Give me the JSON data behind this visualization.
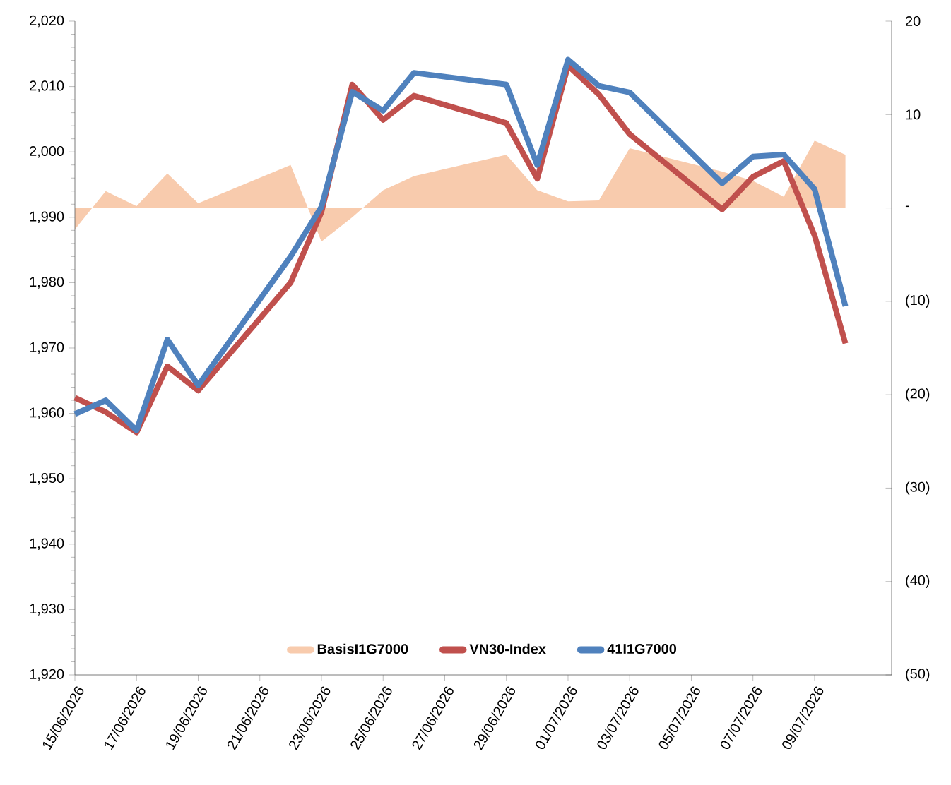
{
  "chart_data": {
    "type": "line",
    "x": [
      "2026-06-15",
      "2026-06-16",
      "2026-06-17",
      "2026-06-18",
      "2026-06-19",
      "2026-06-22",
      "2026-06-23",
      "2026-06-24",
      "2026-06-25",
      "2026-06-26",
      "2026-06-29",
      "2026-06-30",
      "2026-07-01",
      "2026-07-02",
      "2026-07-03",
      "2026-07-06",
      "2026-07-07",
      "2026-07-08",
      "2026-07-09",
      "2026-07-10"
    ],
    "series": [
      {
        "name": "BasisI1G7000",
        "type": "area",
        "axis": "y2",
        "color": "#f8cbad",
        "values": [
          -2.3,
          1.8,
          0.2,
          3.7,
          0.5,
          4.6,
          -3.6,
          -1.0,
          1.9,
          3.4,
          5.7,
          1.9,
          0.7,
          0.8,
          6.4,
          3.9,
          2.9,
          1.2,
          7.2,
          5.7
        ]
      },
      {
        "name": "VN30-Index",
        "color": "#c0504d",
        "values": [
          1962.4,
          1960.2,
          1957.1,
          1967.2,
          1963.5,
          1980.0,
          1990.8,
          2010.3,
          2004.9,
          2008.6,
          2004.4,
          1995.9,
          2013.2,
          2008.8,
          2002.7,
          1991.2,
          1996.2,
          1998.6,
          1987.2,
          1970.7
        ]
      },
      {
        "name": "41I1G7000",
        "color": "#4f81bd",
        "values": [
          1959.9,
          1962.0,
          1957.4,
          1971.3,
          1964.3,
          1984.0,
          1991.6,
          2009.2,
          2006.3,
          2012.1,
          2010.3,
          1998.0,
          2014.1,
          2010.1,
          2009.1,
          1995.2,
          1999.3,
          1999.6,
          1994.3,
          1976.4
        ]
      }
    ],
    "xlim": [
      "2026-06-15",
      "2026-07-11T12:00"
    ],
    "xticks": [
      {
        "value": "2026-06-15",
        "label": "15/06/2026"
      },
      {
        "value": "2026-06-17",
        "label": "17/06/2026"
      },
      {
        "value": "2026-06-19",
        "label": "19/06/2026"
      },
      {
        "value": "2026-06-21",
        "label": "21/06/2026"
      },
      {
        "value": "2026-06-23",
        "label": "23/06/2026"
      },
      {
        "value": "2026-06-25",
        "label": "25/06/2026"
      },
      {
        "value": "2026-06-27",
        "label": "27/06/2026"
      },
      {
        "value": "2026-06-29",
        "label": "29/06/2026"
      },
      {
        "value": "2026-07-01",
        "label": "01/07/2026"
      },
      {
        "value": "2026-07-03",
        "label": "03/07/2026"
      },
      {
        "value": "2026-07-05",
        "label": "05/07/2026"
      },
      {
        "value": "2026-07-07",
        "label": "07/07/2026"
      },
      {
        "value": "2026-07-09",
        "label": "09/07/2026"
      }
    ],
    "ylim": [
      1920,
      2020
    ],
    "yticks": [
      {
        "value": 1920,
        "label": "1,920"
      },
      {
        "value": 1930,
        "label": "1,930"
      },
      {
        "value": 1940,
        "label": "1,940"
      },
      {
        "value": 1950,
        "label": "1,950"
      },
      {
        "value": 1960,
        "label": "1,960"
      },
      {
        "value": 1970,
        "label": "1,970"
      },
      {
        "value": 1980,
        "label": "1,980"
      },
      {
        "value": 1990,
        "label": "1,990"
      },
      {
        "value": 2000,
        "label": "2,000"
      },
      {
        "value": 2010,
        "label": "2,010"
      },
      {
        "value": 2020,
        "label": "2,020"
      }
    ],
    "y2lim": [
      -50,
      20
    ],
    "y2ticks": [
      {
        "value": -50,
        "label": "(50)"
      },
      {
        "value": -40,
        "label": "(40)"
      },
      {
        "value": -30,
        "label": "(30)"
      },
      {
        "value": -20,
        "label": "(20)"
      },
      {
        "value": -10,
        "label": "(10)"
      },
      {
        "value": 0,
        "label": "-"
      },
      10,
      20
    ],
    "legend": "bottom",
    "grid": false,
    "line_style": "solid",
    "marker": "none"
  }
}
